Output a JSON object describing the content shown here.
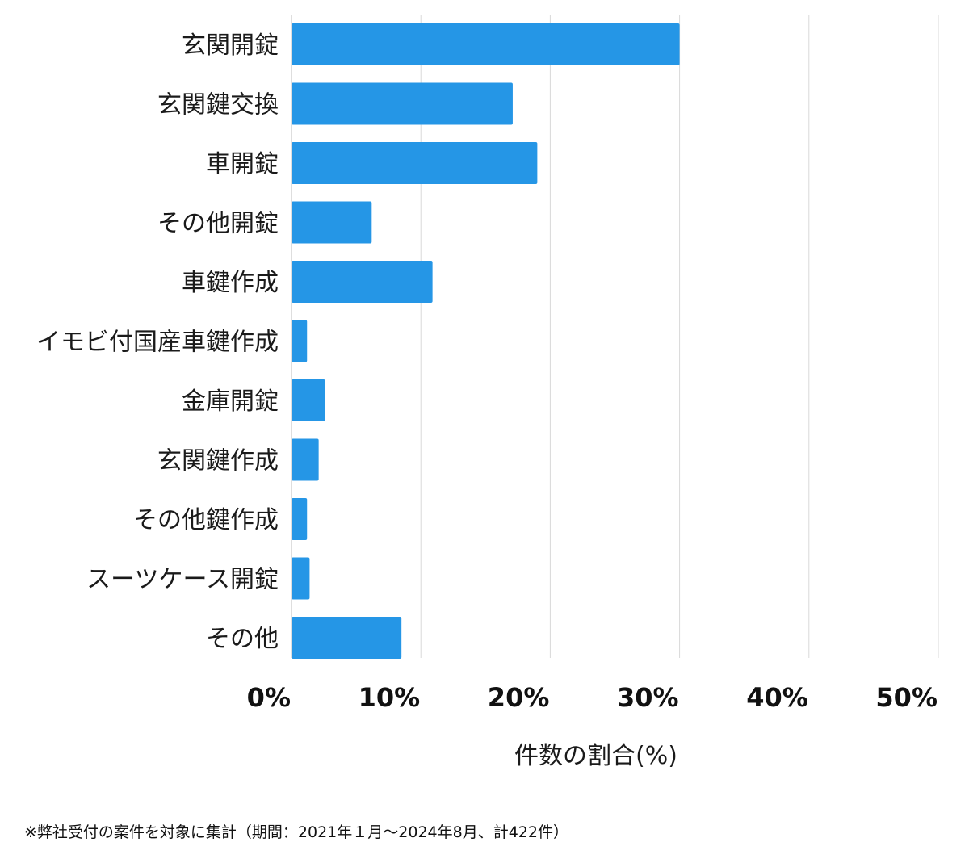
{
  "chart_data": {
    "type": "bar",
    "orientation": "horizontal",
    "categories": [
      "玄関開錠",
      "玄関鍵交換",
      "車開錠",
      "その他開錠",
      "車鍵作成",
      "イモビ付国産車鍵作成",
      "金庫開錠",
      "玄関鍵作成",
      "その他鍵作成",
      "スーツケース開錠",
      "その他"
    ],
    "values": [
      30.0,
      17.1,
      19.0,
      6.2,
      10.9,
      1.2,
      2.6,
      2.1,
      1.2,
      1.4,
      8.5
    ],
    "x_ticks": [
      "0%",
      "10%",
      "20%",
      "30%",
      "40%",
      "50%"
    ],
    "xlim": [
      0,
      50
    ],
    "xlabel": "件数の割合(%)",
    "grid": "vertical",
    "bar_color": "#2596e6",
    "grid_color": "#d9d9d9"
  },
  "footnote": "※弊社受付の案件を対象に集計（期間：2021年１月〜2024年8月、計422件）"
}
